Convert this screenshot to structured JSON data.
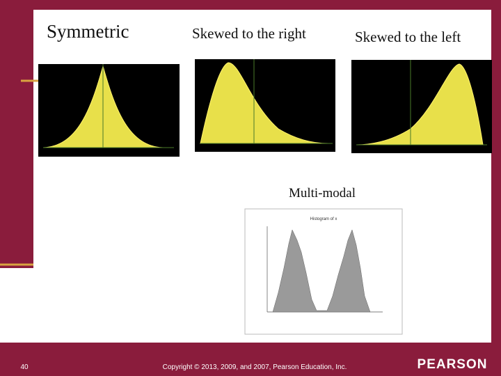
{
  "slide": {
    "panels": [
      {
        "title": "Symmetric"
      },
      {
        "title": "Skewed to the right"
      },
      {
        "title": "Skewed to the left"
      },
      {
        "title": "Multi-modal",
        "plot_title": "Histogram of x"
      }
    ]
  },
  "footer": {
    "page": "40",
    "copyright": "Copyright © 2013, 2009, and 2007, Pearson Education, Inc.",
    "brand": "PEARSON"
  }
}
